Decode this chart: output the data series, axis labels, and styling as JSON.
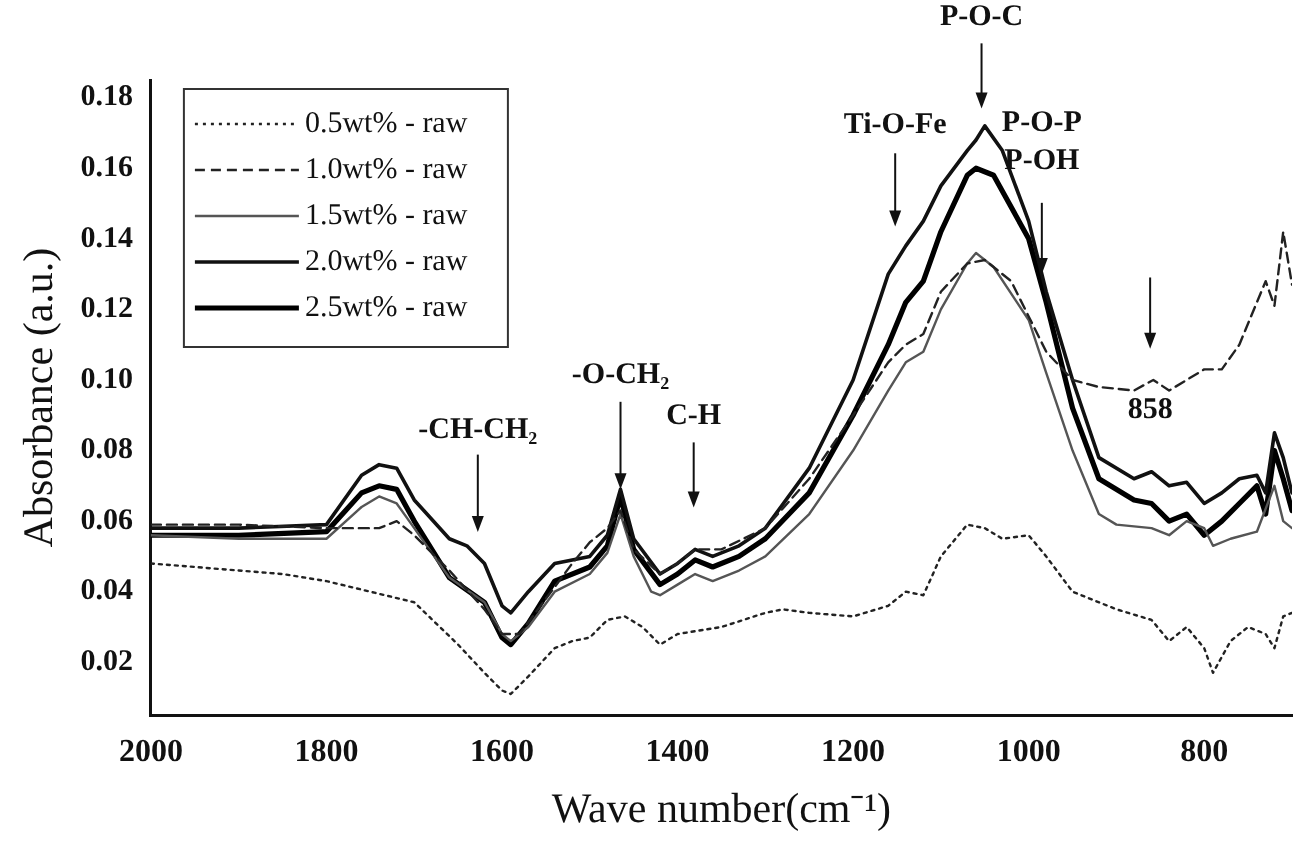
{
  "chart_data": {
    "type": "line",
    "xlabel": "Wave number(cm⁻¹)",
    "ylabel": "Absorbance (a.u.)",
    "xlim": [
      2000,
      700
    ],
    "xticks": [
      2000,
      1800,
      1600,
      1400,
      1200,
      1000,
      800
    ],
    "ylim": [
      0.005,
      0.185
    ],
    "yticks": [
      0.02,
      0.04,
      0.06,
      0.08,
      {
        "value": 0.1,
        "label": "0.10"
      },
      0.12,
      0.14,
      0.16,
      0.18
    ],
    "grid": false,
    "legend": "top left",
    "marker": "none",
    "series": [
      {
        "name": "0.5wt% - raw",
        "color": "#222222",
        "line_style": "dotted",
        "x": [
          2000,
          1950,
          1900,
          1850,
          1800,
          1750,
          1700,
          1650,
          1620,
          1600,
          1590,
          1570,
          1540,
          1520,
          1500,
          1480,
          1460,
          1440,
          1420,
          1400,
          1350,
          1300,
          1280,
          1250,
          1200,
          1160,
          1140,
          1120,
          1100,
          1070,
          1050,
          1030,
          1000,
          980,
          950,
          900,
          860,
          840,
          820,
          800,
          790,
          770,
          750,
          730,
          720,
          710,
          700
        ],
        "values": [
          0.048,
          0.047,
          0.046,
          0.045,
          0.043,
          0.04,
          0.037,
          0.025,
          0.017,
          0.012,
          0.011,
          0.016,
          0.024,
          0.026,
          0.027,
          0.032,
          0.033,
          0.03,
          0.025,
          0.028,
          0.03,
          0.034,
          0.035,
          0.034,
          0.033,
          0.036,
          0.04,
          0.039,
          0.05,
          0.059,
          0.058,
          0.055,
          0.056,
          0.05,
          0.04,
          0.035,
          0.032,
          0.026,
          0.03,
          0.024,
          0.017,
          0.026,
          0.03,
          0.028,
          0.024,
          0.033,
          0.034
        ]
      },
      {
        "name": "1.0wt% - raw",
        "color": "#222222",
        "line_style": "dashed",
        "x": [
          2000,
          1900,
          1800,
          1760,
          1740,
          1720,
          1700,
          1660,
          1620,
          1600,
          1580,
          1550,
          1520,
          1500,
          1480,
          1465,
          1450,
          1420,
          1400,
          1380,
          1350,
          1300,
          1250,
          1200,
          1160,
          1140,
          1120,
          1100,
          1070,
          1050,
          1020,
          1000,
          980,
          950,
          920,
          880,
          858,
          840,
          820,
          800,
          780,
          760,
          740,
          730,
          720,
          710,
          700
        ],
        "values": [
          0.059,
          0.059,
          0.058,
          0.058,
          0.058,
          0.06,
          0.056,
          0.046,
          0.035,
          0.028,
          0.028,
          0.038,
          0.048,
          0.054,
          0.058,
          0.063,
          0.052,
          0.045,
          0.048,
          0.052,
          0.052,
          0.058,
          0.072,
          0.09,
          0.105,
          0.11,
          0.113,
          0.125,
          0.133,
          0.134,
          0.128,
          0.118,
          0.108,
          0.1,
          0.098,
          0.097,
          0.1,
          0.097,
          0.1,
          0.103,
          0.103,
          0.11,
          0.122,
          0.128,
          0.121,
          0.142,
          0.127
        ]
      },
      {
        "name": "1.5wt% - raw",
        "color": "#555555",
        "line_style": "solid",
        "x": [
          2000,
          1900,
          1800,
          1760,
          1740,
          1720,
          1700,
          1660,
          1620,
          1600,
          1590,
          1570,
          1540,
          1500,
          1480,
          1465,
          1450,
          1430,
          1420,
          1400,
          1380,
          1360,
          1330,
          1300,
          1250,
          1200,
          1160,
          1140,
          1120,
          1100,
          1070,
          1060,
          1040,
          1000,
          980,
          950,
          920,
          900,
          860,
          840,
          820,
          800,
          790,
          770,
          740,
          720,
          710,
          700
        ],
        "values": [
          0.056,
          0.055,
          0.055,
          0.064,
          0.067,
          0.065,
          0.058,
          0.044,
          0.037,
          0.028,
          0.026,
          0.03,
          0.04,
          0.045,
          0.051,
          0.062,
          0.05,
          0.04,
          0.039,
          0.042,
          0.045,
          0.043,
          0.046,
          0.05,
          0.062,
          0.08,
          0.097,
          0.105,
          0.108,
          0.12,
          0.133,
          0.136,
          0.132,
          0.117,
          0.102,
          0.08,
          0.062,
          0.059,
          0.058,
          0.056,
          0.06,
          0.058,
          0.053,
          0.055,
          0.057,
          0.07,
          0.06,
          0.058
        ]
      },
      {
        "name": "2.0wt% - raw",
        "color": "#111111",
        "line_style": "solid",
        "x": [
          2000,
          1900,
          1800,
          1760,
          1740,
          1720,
          1700,
          1660,
          1640,
          1620,
          1600,
          1590,
          1570,
          1540,
          1500,
          1480,
          1465,
          1450,
          1420,
          1400,
          1380,
          1360,
          1330,
          1300,
          1250,
          1200,
          1160,
          1140,
          1120,
          1100,
          1070,
          1060,
          1050,
          1030,
          1000,
          980,
          950,
          920,
          880,
          860,
          840,
          820,
          800,
          780,
          760,
          740,
          730,
          720,
          710,
          700
        ],
        "values": [
          0.058,
          0.058,
          0.059,
          0.073,
          0.076,
          0.075,
          0.066,
          0.055,
          0.053,
          0.048,
          0.036,
          0.034,
          0.04,
          0.048,
          0.05,
          0.056,
          0.069,
          0.055,
          0.045,
          0.048,
          0.052,
          0.05,
          0.053,
          0.058,
          0.075,
          0.1,
          0.13,
          0.138,
          0.145,
          0.155,
          0.165,
          0.168,
          0.172,
          0.165,
          0.145,
          0.125,
          0.1,
          0.078,
          0.072,
          0.074,
          0.07,
          0.071,
          0.065,
          0.068,
          0.072,
          0.073,
          0.068,
          0.085,
          0.078,
          0.068
        ]
      },
      {
        "name": "2.5wt% - raw",
        "color": "#000000",
        "line_style": "solid",
        "x": [
          2000,
          1900,
          1800,
          1760,
          1740,
          1720,
          1700,
          1660,
          1620,
          1600,
          1590,
          1570,
          1540,
          1500,
          1480,
          1465,
          1450,
          1420,
          1400,
          1380,
          1360,
          1330,
          1300,
          1250,
          1200,
          1160,
          1140,
          1120,
          1100,
          1070,
          1060,
          1040,
          1000,
          980,
          950,
          920,
          880,
          860,
          840,
          820,
          800,
          780,
          760,
          740,
          730,
          720,
          710,
          700
        ],
        "values": [
          0.056,
          0.056,
          0.057,
          0.068,
          0.07,
          0.069,
          0.06,
          0.044,
          0.037,
          0.027,
          0.025,
          0.031,
          0.043,
          0.047,
          0.053,
          0.067,
          0.052,
          0.042,
          0.045,
          0.049,
          0.047,
          0.05,
          0.055,
          0.068,
          0.09,
          0.11,
          0.122,
          0.128,
          0.142,
          0.158,
          0.16,
          0.158,
          0.14,
          0.122,
          0.092,
          0.072,
          0.066,
          0.065,
          0.06,
          0.062,
          0.056,
          0.06,
          0.065,
          0.07,
          0.062,
          0.08,
          0.072,
          0.063
        ]
      }
    ],
    "annotations": [
      "-CH-CH₂",
      {
        "text": "-O-CH₂",
        "x": 1465,
        "y": 0.069
      },
      "C-H",
      "Ti-O-Fe",
      "P-O-C",
      {
        "text": "P-O-P\nP-OH",
        "x": 985,
        "y": 0.13
      },
      "858"
    ]
  }
}
